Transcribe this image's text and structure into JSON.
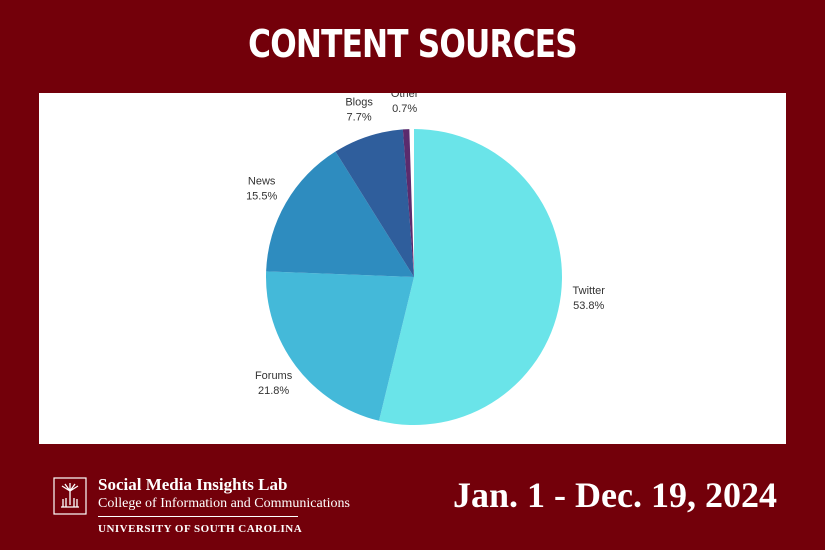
{
  "chart_data": {
    "type": "pie",
    "title": "CONTENT SOURCES",
    "categories": [
      "Twitter",
      "Forums",
      "News",
      "Blogs",
      "Other"
    ],
    "values": [
      53.8,
      21.8,
      15.5,
      7.7,
      0.7
    ],
    "value_labels": [
      "53.8%",
      "21.8%",
      "15.5%",
      "7.7%",
      "0.7%"
    ],
    "colors": [
      "#6ae4e9",
      "#44b9d9",
      "#2e8cbf",
      "#2f5e9c",
      "#5b2b6d"
    ]
  },
  "footer": {
    "lab": "Social Media Insights Lab",
    "college": "College of Information and Communications",
    "university": "UNIVERSITY OF SOUTH CAROLINA",
    "date_range": "Jan. 1 - Dec. 19, 2024"
  }
}
